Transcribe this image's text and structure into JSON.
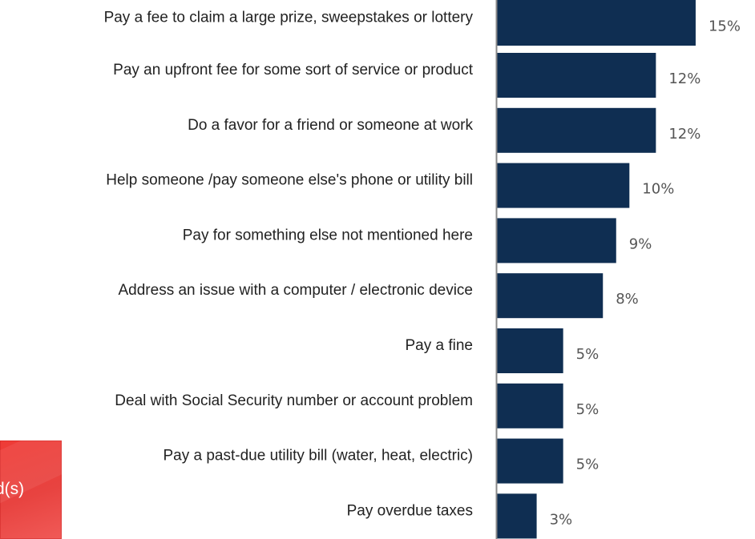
{
  "chart_data": {
    "type": "bar",
    "orientation": "horizontal",
    "categories": [
      "Pay a fee to claim a large prize, sweepstakes or lottery",
      "Pay an upfront fee for some sort of service or product",
      "Do a favor for a friend or someone at work",
      "Help someone /pay someone else's phone or utility bill",
      "Pay for something else not mentioned here",
      "Address an issue with a computer / electronic device",
      "Pay a fine",
      "Deal with Social Security number or account problem",
      "Pay a past-due utility bill (water, heat, electric)",
      "Pay overdue taxes"
    ],
    "values": [
      15,
      12,
      12,
      10,
      9,
      8,
      5,
      5,
      5,
      3
    ],
    "value_labels": [
      "15%",
      "12%",
      "12%",
      "10%",
      "9%",
      "8%",
      "5%",
      "5%",
      "5%",
      "3%"
    ],
    "unit": "%",
    "bar_color": "#0f2e52",
    "axis_color": "#888888",
    "grid": false,
    "legend": "none"
  },
  "badge": {
    "text": "d(s)",
    "color": "#e84340"
  }
}
